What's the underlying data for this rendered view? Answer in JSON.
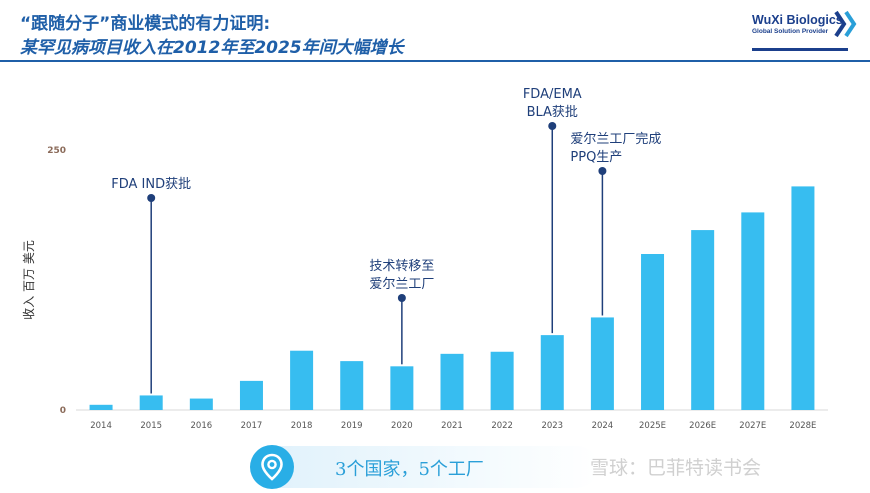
{
  "header": {
    "title": "“跟随分子”商业模式的有力证明:",
    "subtitle": "某罕见病项目收入在2012年至2025年间大幅增长"
  },
  "logo": {
    "name": "WuXi Biologics",
    "tagline": "Global Solution Provider"
  },
  "chart_data": {
    "type": "bar",
    "categories": [
      "2014",
      "2015",
      "2016",
      "2017",
      "2018",
      "2019",
      "2020",
      "2021",
      "2022",
      "2023",
      "2024",
      "2025E",
      "2026E",
      "2027E",
      "2028E"
    ],
    "values": [
      5,
      14,
      11,
      28,
      57,
      47,
      42,
      54,
      56,
      72,
      89,
      150,
      173,
      190,
      215
    ],
    "ylabel": "收入 百万 美元",
    "ylim": [
      0,
      250
    ],
    "yticks": [
      "0",
      "250"
    ],
    "bar_color": "#37bdf0",
    "annotations": [
      {
        "category": "2015",
        "lines": [
          "FDA IND获批"
        ]
      },
      {
        "category": "2020",
        "lines": [
          "技术转移至",
          "爱尔兰工厂"
        ]
      },
      {
        "category": "2023",
        "lines": [
          "FDA/EMA",
          "BLA获批"
        ]
      },
      {
        "category": "2024",
        "lines": [
          "爱尔兰工厂完成",
          "PPQ生产"
        ]
      }
    ]
  },
  "footer": {
    "pill_text": "3个国家，5个工厂",
    "watermark": "雪球：巴菲特读书会",
    "pill_color": "#29aee6"
  }
}
